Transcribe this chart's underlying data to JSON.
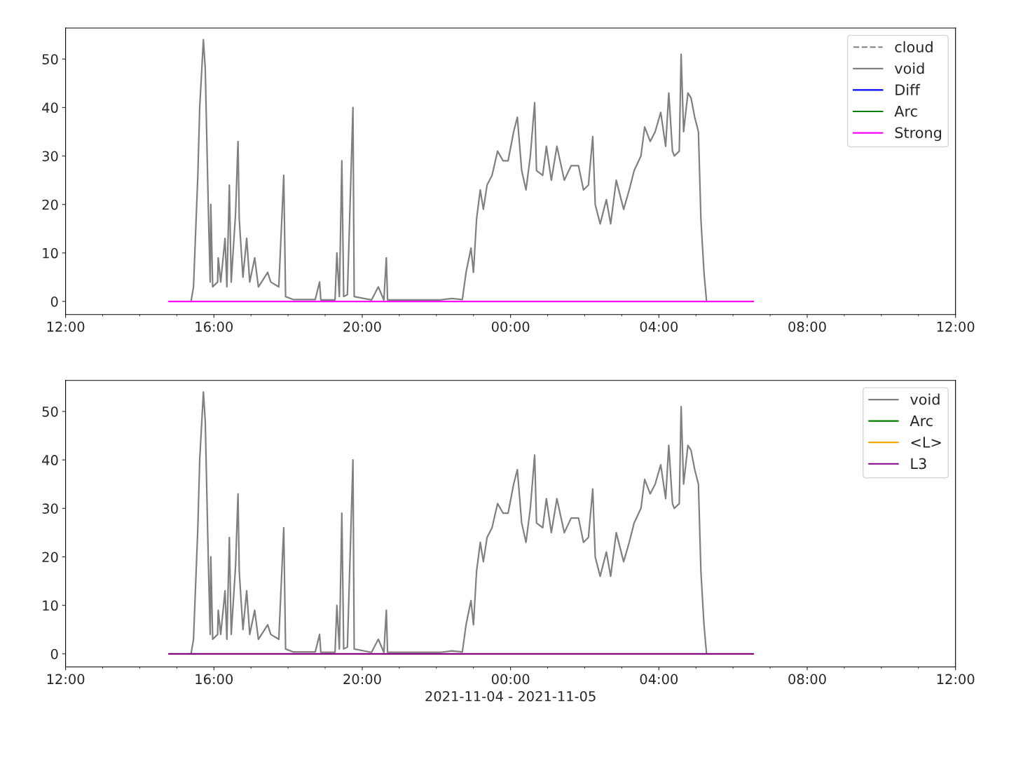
{
  "chart_data": [
    {
      "type": "line",
      "xlim": [
        "2021-11-04T12:00",
        "2021-11-05T12:00"
      ],
      "ylim": [
        -2.7,
        56.4
      ],
      "yticks": [
        0,
        10,
        20,
        30,
        40,
        50
      ],
      "xticks": [
        {
          "value": "2021-11-04T12:00",
          "label": "12:00"
        },
        {
          "value": "2021-11-04T13:00",
          "label": null
        },
        {
          "value": "2021-11-04T14:00",
          "label": null
        },
        {
          "value": "2021-11-04T15:00",
          "label": null
        },
        {
          "value": "2021-11-04T16:00",
          "label": "16:00"
        },
        {
          "value": "2021-11-04T17:00",
          "label": null
        },
        {
          "value": "2021-11-04T18:00",
          "label": null
        },
        {
          "value": "2021-11-04T19:00",
          "label": null
        },
        {
          "value": "2021-11-04T20:00",
          "label": "20:00"
        },
        {
          "value": "2021-11-04T21:00",
          "label": null
        },
        {
          "value": "2021-11-04T22:00",
          "label": null
        },
        {
          "value": "2021-11-04T23:00",
          "label": null
        },
        {
          "value": "2021-11-05T00:00",
          "label": "00:00"
        },
        {
          "value": "2021-11-05T01:00",
          "label": null
        },
        {
          "value": "2021-11-05T02:00",
          "label": null
        },
        {
          "value": "2021-11-05T03:00",
          "label": null
        },
        {
          "value": "2021-11-05T04:00",
          "label": "04:00"
        },
        {
          "value": "2021-11-05T05:00",
          "label": null
        },
        {
          "value": "2021-11-05T06:00",
          "label": null
        },
        {
          "value": "2021-11-05T07:00",
          "label": null
        },
        {
          "value": "2021-11-05T08:00",
          "label": "08:00"
        },
        {
          "value": "2021-11-05T09:00",
          "label": null
        },
        {
          "value": "2021-11-05T10:00",
          "label": null
        },
        {
          "value": "2021-11-05T11:00",
          "label": null
        },
        {
          "value": "2021-11-05T12:00",
          "label": "12:00"
        }
      ],
      "grid": false,
      "legend": "top right",
      "series": [
        {
          "name": "cloud",
          "color": "#808080",
          "line_style": "dashed"
        },
        {
          "name": "void",
          "color": "#808080",
          "line_style": "solid",
          "x": [
            "2021-11-04T15:23",
            "2021-11-04T15:27",
            "2021-11-04T15:34",
            "2021-11-04T15:37",
            "2021-11-04T15:43",
            "2021-11-04T15:46",
            "2021-11-04T15:51",
            "2021-11-04T15:54",
            "2021-11-04T15:55",
            "2021-11-04T15:58",
            "2021-11-04T16:06",
            "2021-11-04T16:07",
            "2021-11-04T16:11",
            "2021-11-04T16:18",
            "2021-11-04T16:21",
            "2021-11-04T16:25",
            "2021-11-04T16:28",
            "2021-11-04T16:35",
            "2021-11-04T16:39",
            "2021-11-04T16:41",
            "2021-11-04T16:47",
            "2021-11-04T16:53",
            "2021-11-04T16:58",
            "2021-11-04T17:06",
            "2021-11-04T17:12",
            "2021-11-04T17:27",
            "2021-11-04T17:32",
            "2021-11-04T17:45",
            "2021-11-04T17:53",
            "2021-11-04T17:56",
            "2021-11-04T18:08",
            "2021-11-04T18:44",
            "2021-11-04T18:51",
            "2021-11-04T18:53",
            "2021-11-04T19:16",
            "2021-11-04T19:19",
            "2021-11-04T19:23",
            "2021-11-04T19:27",
            "2021-11-04T19:30",
            "2021-11-04T19:36",
            "2021-11-04T19:45",
            "2021-11-04T19:47",
            "2021-11-04T20:15",
            "2021-11-04T20:26",
            "2021-11-04T20:35",
            "2021-11-04T20:39",
            "2021-11-04T20:41",
            "2021-11-04T21:17",
            "2021-11-04T22:06",
            "2021-11-04T22:25",
            "2021-11-04T22:42",
            "2021-11-04T22:48",
            "2021-11-04T22:56",
            "2021-11-04T23:00",
            "2021-11-04T23:05",
            "2021-11-04T23:11",
            "2021-11-04T23:16",
            "2021-11-04T23:22",
            "2021-11-04T23:30",
            "2021-11-04T23:39",
            "2021-11-04T23:48",
            "2021-11-04T23:56",
            "2021-11-05T00:05",
            "2021-11-05T00:11",
            "2021-11-05T00:18",
            "2021-11-05T00:25",
            "2021-11-05T00:32",
            "2021-11-05T00:39",
            "2021-11-05T00:42",
            "2021-11-05T00:52",
            "2021-11-05T00:58",
            "2021-11-05T01:06",
            "2021-11-05T01:15",
            "2021-11-05T01:27",
            "2021-11-05T01:38",
            "2021-11-05T01:50",
            "2021-11-05T01:58",
            "2021-11-05T02:06",
            "2021-11-05T02:13",
            "2021-11-05T02:17",
            "2021-11-05T02:25",
            "2021-11-05T02:35",
            "2021-11-05T02:42",
            "2021-11-05T02:51",
            "2021-11-05T03:03",
            "2021-11-05T03:12",
            "2021-11-05T03:20",
            "2021-11-05T03:31",
            "2021-11-05T03:37",
            "2021-11-05T03:46",
            "2021-11-05T03:54",
            "2021-11-05T04:03",
            "2021-11-05T04:11",
            "2021-11-05T04:16",
            "2021-11-05T04:22",
            "2021-11-05T04:25",
            "2021-11-05T04:33",
            "2021-11-05T04:36",
            "2021-11-05T04:40",
            "2021-11-05T04:47",
            "2021-11-05T04:52",
            "2021-11-05T04:58",
            "2021-11-05T05:04",
            "2021-11-05T05:08",
            "2021-11-05T05:13",
            "2021-11-05T05:17"
          ],
          "values": [
            0,
            3,
            26,
            40,
            54,
            48,
            19,
            4,
            20,
            3,
            4,
            9,
            4,
            13,
            3,
            24,
            4,
            18,
            33,
            17,
            5,
            13,
            4,
            9,
            3,
            6,
            4,
            3,
            26,
            1,
            0.4,
            0.4,
            4,
            0.3,
            0.3,
            10,
            1,
            29,
            1,
            1.4,
            40,
            1,
            0.3,
            3,
            0.3,
            9,
            0.3,
            0.3,
            0.3,
            0.6,
            0.4,
            6,
            11,
            6,
            17,
            23,
            19,
            24,
            26,
            31,
            29,
            29,
            35,
            38,
            27,
            23,
            30,
            41,
            27,
            26,
            32,
            25,
            32,
            25,
            28,
            28,
            23,
            24,
            34,
            20,
            16,
            21,
            16,
            25,
            19,
            23,
            27,
            30,
            36,
            33,
            35,
            39,
            32,
            43,
            31,
            30,
            31,
            51,
            35,
            43,
            42,
            38,
            35,
            17,
            6,
            0.2
          ]
        },
        {
          "name": "Diff",
          "color": "#0000ff",
          "line_style": "solid"
        },
        {
          "name": "Arc",
          "color": "#008000",
          "line_style": "solid"
        },
        {
          "name": "Strong",
          "color": "#ff00ff",
          "line_style": "solid",
          "x": [
            "2021-11-04T14:47",
            "2021-11-05T06:33"
          ],
          "values": [
            0,
            0
          ]
        }
      ]
    },
    {
      "type": "line",
      "xlabel": "2021-11-04 - 2021-11-05",
      "xlim": [
        "2021-11-04T12:00",
        "2021-11-05T12:00"
      ],
      "ylim": [
        -2.7,
        56.4
      ],
      "yticks": [
        0,
        10,
        20,
        30,
        40,
        50
      ],
      "xticks": [
        {
          "value": "2021-11-04T12:00",
          "label": "12:00"
        },
        {
          "value": "2021-11-04T13:00",
          "label": null
        },
        {
          "value": "2021-11-04T14:00",
          "label": null
        },
        {
          "value": "2021-11-04T15:00",
          "label": null
        },
        {
          "value": "2021-11-04T16:00",
          "label": "16:00"
        },
        {
          "value": "2021-11-04T17:00",
          "label": null
        },
        {
          "value": "2021-11-04T18:00",
          "label": null
        },
        {
          "value": "2021-11-04T19:00",
          "label": null
        },
        {
          "value": "2021-11-04T20:00",
          "label": "20:00"
        },
        {
          "value": "2021-11-04T21:00",
          "label": null
        },
        {
          "value": "2021-11-04T22:00",
          "label": null
        },
        {
          "value": "2021-11-04T23:00",
          "label": null
        },
        {
          "value": "2021-11-05T00:00",
          "label": "00:00"
        },
        {
          "value": "2021-11-05T01:00",
          "label": null
        },
        {
          "value": "2021-11-05T02:00",
          "label": null
        },
        {
          "value": "2021-11-05T03:00",
          "label": null
        },
        {
          "value": "2021-11-05T04:00",
          "label": "04:00"
        },
        {
          "value": "2021-11-05T05:00",
          "label": null
        },
        {
          "value": "2021-11-05T06:00",
          "label": null
        },
        {
          "value": "2021-11-05T07:00",
          "label": null
        },
        {
          "value": "2021-11-05T08:00",
          "label": "08:00"
        },
        {
          "value": "2021-11-05T09:00",
          "label": null
        },
        {
          "value": "2021-11-05T10:00",
          "label": null
        },
        {
          "value": "2021-11-05T11:00",
          "label": null
        },
        {
          "value": "2021-11-05T12:00",
          "label": "12:00"
        }
      ],
      "grid": false,
      "legend": "top right",
      "series": [
        {
          "name": "void",
          "color": "#808080",
          "line_style": "solid",
          "x": [
            "2021-11-04T15:23",
            "2021-11-04T15:27",
            "2021-11-04T15:34",
            "2021-11-04T15:37",
            "2021-11-04T15:43",
            "2021-11-04T15:46",
            "2021-11-04T15:51",
            "2021-11-04T15:54",
            "2021-11-04T15:55",
            "2021-11-04T15:58",
            "2021-11-04T16:06",
            "2021-11-04T16:07",
            "2021-11-04T16:11",
            "2021-11-04T16:18",
            "2021-11-04T16:21",
            "2021-11-04T16:25",
            "2021-11-04T16:28",
            "2021-11-04T16:35",
            "2021-11-04T16:39",
            "2021-11-04T16:41",
            "2021-11-04T16:47",
            "2021-11-04T16:53",
            "2021-11-04T16:58",
            "2021-11-04T17:06",
            "2021-11-04T17:12",
            "2021-11-04T17:27",
            "2021-11-04T17:32",
            "2021-11-04T17:45",
            "2021-11-04T17:53",
            "2021-11-04T17:56",
            "2021-11-04T18:08",
            "2021-11-04T18:44",
            "2021-11-04T18:51",
            "2021-11-04T18:53",
            "2021-11-04T19:16",
            "2021-11-04T19:19",
            "2021-11-04T19:23",
            "2021-11-04T19:27",
            "2021-11-04T19:30",
            "2021-11-04T19:36",
            "2021-11-04T19:45",
            "2021-11-04T19:47",
            "2021-11-04T20:15",
            "2021-11-04T20:26",
            "2021-11-04T20:35",
            "2021-11-04T20:39",
            "2021-11-04T20:41",
            "2021-11-04T21:17",
            "2021-11-04T22:06",
            "2021-11-04T22:25",
            "2021-11-04T22:42",
            "2021-11-04T22:48",
            "2021-11-04T22:56",
            "2021-11-04T23:00",
            "2021-11-04T23:05",
            "2021-11-04T23:11",
            "2021-11-04T23:16",
            "2021-11-04T23:22",
            "2021-11-04T23:30",
            "2021-11-04T23:39",
            "2021-11-04T23:48",
            "2021-11-04T23:56",
            "2021-11-05T00:05",
            "2021-11-05T00:11",
            "2021-11-05T00:18",
            "2021-11-05T00:25",
            "2021-11-05T00:32",
            "2021-11-05T00:39",
            "2021-11-05T00:42",
            "2021-11-05T00:52",
            "2021-11-05T00:58",
            "2021-11-05T01:06",
            "2021-11-05T01:15",
            "2021-11-05T01:27",
            "2021-11-05T01:38",
            "2021-11-05T01:50",
            "2021-11-05T01:58",
            "2021-11-05T02:06",
            "2021-11-05T02:13",
            "2021-11-05T02:17",
            "2021-11-05T02:25",
            "2021-11-05T02:35",
            "2021-11-05T02:42",
            "2021-11-05T02:51",
            "2021-11-05T03:03",
            "2021-11-05T03:12",
            "2021-11-05T03:20",
            "2021-11-05T03:31",
            "2021-11-05T03:37",
            "2021-11-05T03:46",
            "2021-11-05T03:54",
            "2021-11-05T04:03",
            "2021-11-05T04:11",
            "2021-11-05T04:16",
            "2021-11-05T04:22",
            "2021-11-05T04:25",
            "2021-11-05T04:33",
            "2021-11-05T04:36",
            "2021-11-05T04:40",
            "2021-11-05T04:47",
            "2021-11-05T04:52",
            "2021-11-05T04:58",
            "2021-11-05T05:04",
            "2021-11-05T05:08",
            "2021-11-05T05:13",
            "2021-11-05T05:17"
          ],
          "values": [
            0,
            3,
            26,
            40,
            54,
            48,
            19,
            4,
            20,
            3,
            4,
            9,
            4,
            13,
            3,
            24,
            4,
            18,
            33,
            17,
            5,
            13,
            4,
            9,
            3,
            6,
            4,
            3,
            26,
            1,
            0.4,
            0.4,
            4,
            0.3,
            0.3,
            10,
            1,
            29,
            1,
            1.4,
            40,
            1,
            0.3,
            3,
            0.3,
            9,
            0.3,
            0.3,
            0.3,
            0.6,
            0.4,
            6,
            11,
            6,
            17,
            23,
            19,
            24,
            26,
            31,
            29,
            29,
            35,
            38,
            27,
            23,
            30,
            41,
            27,
            26,
            32,
            25,
            32,
            25,
            28,
            28,
            23,
            24,
            34,
            20,
            16,
            21,
            16,
            25,
            19,
            23,
            27,
            30,
            36,
            33,
            35,
            39,
            32,
            43,
            31,
            30,
            31,
            51,
            35,
            43,
            42,
            38,
            35,
            17,
            6,
            0.2
          ]
        },
        {
          "name": "Arc",
          "color": "#008000",
          "line_style": "solid"
        },
        {
          "name": "<L>",
          "color": "#ffa500",
          "line_style": "solid"
        },
        {
          "name": "L3",
          "color": "#800080",
          "line_style": "solid",
          "x": [
            "2021-11-04T14:47",
            "2021-11-05T06:33"
          ],
          "values": [
            0,
            0
          ]
        }
      ]
    }
  ]
}
